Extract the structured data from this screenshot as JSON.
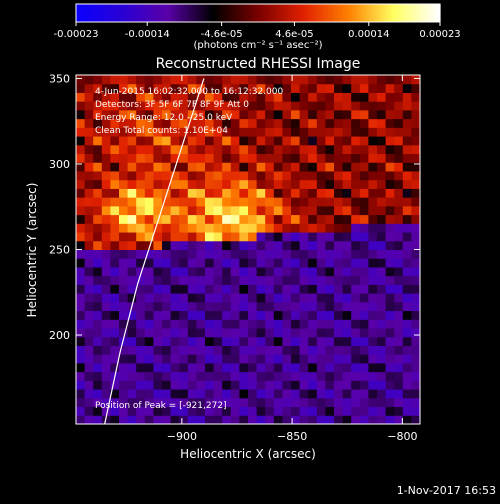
{
  "chart_data": {
    "type": "heatmap",
    "title": "Reconstructed RHESSI Image",
    "xlabel": "Heliocentric X (arcsec)",
    "ylabel": "Heliocentric Y (arcsec)",
    "xlim": [
      -948,
      -792
    ],
    "ylim": [
      148,
      352
    ],
    "x_ticks": [
      -900,
      -850,
      -800
    ],
    "y_ticks": [
      200,
      250,
      300,
      350
    ],
    "colorbar": {
      "range": [
        -0.00023,
        0.00023
      ],
      "tick_labels": [
        "-0.00023",
        "-0.00014",
        "-4.6e-05",
        "4.6e-05",
        "0.00014",
        "0.00023"
      ],
      "tick_values": [
        -0.00023,
        -0.00014,
        -4.6e-05,
        4.6e-05,
        0.00014,
        0.00023
      ],
      "label": "(photons cm⁻² s⁻¹ asec⁻²)",
      "colormap": [
        "#0a00ff",
        "#2a00d4",
        "#5a00a8",
        "#000000",
        "#7a0000",
        "#e02000",
        "#ff8000",
        "#ffff60",
        "#ffffff"
      ]
    },
    "annotations": [
      "4-Jun-2015 16:02:32.000 to 16:12:32.000",
      "Detectors: 3F 5F 6F 7F 8F 9F  Att 0",
      "Energy Range: 12.0 - 25.0 keV",
      "Clean     Total counts: 1.10E+04"
    ],
    "peak_label": "Position of Peak = [-921,272]",
    "peak": [
      -921,
      272
    ],
    "limb_curve": [
      [
        -935,
        148
      ],
      [
        -928,
        190
      ],
      [
        -920,
        230
      ],
      [
        -910,
        270
      ],
      [
        -900,
        310
      ],
      [
        -890,
        350
      ]
    ]
  },
  "footer": {
    "timestamp": "1-Nov-2017 16:53"
  }
}
